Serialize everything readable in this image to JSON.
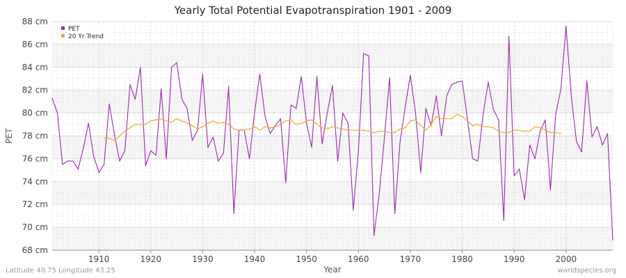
{
  "chart_data": {
    "type": "line",
    "title": "Yearly Total Potential Evapotranspiration 1901 - 2009",
    "xlabel": "Year",
    "ylabel": "PET",
    "xlim": [
      1901,
      2009
    ],
    "ylim": [
      68,
      88
    ],
    "y_unit": "cm",
    "x_ticks": [
      1910,
      1920,
      1930,
      1940,
      1950,
      1960,
      1970,
      1980,
      1990,
      2000
    ],
    "y_ticks": [
      68,
      70,
      72,
      74,
      76,
      78,
      80,
      82,
      84,
      86,
      88
    ],
    "y_tick_labels": [
      "68 cm",
      "70 cm",
      "72 cm",
      "74 cm",
      "76 cm",
      "78 cm",
      "80 cm",
      "82 cm",
      "84 cm",
      "86 cm",
      "88 cm"
    ],
    "grid": true,
    "legend_position": "top-left",
    "series": [
      {
        "name": "PET",
        "color": "#9c27b0",
        "x": [
          1901,
          1902,
          1903,
          1904,
          1905,
          1906,
          1907,
          1908,
          1909,
          1910,
          1911,
          1912,
          1913,
          1914,
          1915,
          1916,
          1917,
          1918,
          1919,
          1920,
          1921,
          1922,
          1923,
          1924,
          1925,
          1926,
          1927,
          1928,
          1929,
          1930,
          1931,
          1932,
          1933,
          1934,
          1935,
          1936,
          1937,
          1938,
          1939,
          1940,
          1941,
          1942,
          1943,
          1944,
          1945,
          1946,
          1947,
          1948,
          1949,
          1950,
          1951,
          1952,
          1953,
          1954,
          1955,
          1956,
          1957,
          1958,
          1959,
          1960,
          1961,
          1962,
          1963,
          1964,
          1965,
          1966,
          1967,
          1968,
          1969,
          1970,
          1971,
          1972,
          1973,
          1974,
          1975,
          1976,
          1977,
          1978,
          1979,
          1980,
          1981,
          1982,
          1983,
          1984,
          1985,
          1986,
          1987,
          1988,
          1989,
          1990,
          1991,
          1992,
          1993,
          1994,
          1995,
          1996,
          1997,
          1998,
          1999,
          2000,
          2001,
          2002,
          2003,
          2004,
          2005,
          2006,
          2007,
          2008,
          2009
        ],
        "y": [
          81.3,
          80.0,
          75.5,
          75.8,
          75.8,
          75.1,
          76.9,
          79.1,
          76.2,
          74.8,
          75.5,
          80.8,
          78.1,
          75.8,
          76.7,
          82.5,
          81.2,
          84.0,
          75.4,
          76.7,
          76.3,
          82.1,
          76.0,
          84.0,
          84.4,
          81.2,
          80.4,
          77.6,
          78.5,
          83.4,
          77.0,
          77.9,
          75.8,
          76.5,
          82.3,
          71.2,
          78.5,
          78.5,
          76.0,
          80.1,
          83.4,
          79.7,
          78.2,
          78.9,
          79.5,
          73.9,
          80.7,
          80.4,
          83.2,
          79.1,
          77.0,
          83.2,
          77.3,
          80.0,
          82.4,
          75.8,
          80.0,
          79.1,
          71.5,
          76.7,
          85.2,
          85.0,
          69.3,
          72.9,
          77.8,
          83.1,
          71.2,
          77.4,
          80.5,
          83.3,
          80.0,
          74.8,
          80.4,
          78.9,
          81.5,
          78.0,
          81.5,
          82.5,
          82.7,
          82.8,
          79.5,
          76.0,
          75.8,
          79.8,
          82.7,
          80.3,
          79.4,
          70.6,
          86.7,
          74.5,
          75.1,
          72.4,
          77.2,
          76.0,
          78.4,
          79.4,
          73.3,
          79.9,
          82.1,
          87.6,
          81.5,
          77.5,
          76.6,
          82.8,
          77.9,
          78.8,
          77.2,
          78.2,
          68.9
        ]
      },
      {
        "name": "20 Yr Trend",
        "color": "#f5a623",
        "x": [
          1911,
          1912,
          1913,
          1914,
          1915,
          1916,
          1917,
          1918,
          1919,
          1920,
          1921,
          1922,
          1923,
          1924,
          1925,
          1926,
          1927,
          1928,
          1929,
          1930,
          1931,
          1932,
          1933,
          1934,
          1935,
          1936,
          1937,
          1938,
          1939,
          1940,
          1941,
          1942,
          1943,
          1944,
          1945,
          1946,
          1947,
          1948,
          1949,
          1950,
          1951,
          1952,
          1953,
          1954,
          1955,
          1956,
          1957,
          1958,
          1959,
          1960,
          1961,
          1962,
          1963,
          1964,
          1965,
          1966,
          1967,
          1968,
          1969,
          1970,
          1971,
          1972,
          1973,
          1974,
          1975,
          1976,
          1977,
          1978,
          1979,
          1980,
          1981,
          1982,
          1983,
          1984,
          1985,
          1986,
          1987,
          1988,
          1989,
          1990,
          1991,
          1992,
          1993,
          1994,
          1995,
          1996,
          1997,
          1998,
          1999
        ],
        "y": [
          77.8,
          77.8,
          77.6,
          78.0,
          78.4,
          78.7,
          79.0,
          79.0,
          79.0,
          79.3,
          79.4,
          79.5,
          79.3,
          79.2,
          79.5,
          79.3,
          79.1,
          78.9,
          78.6,
          78.8,
          79.1,
          79.3,
          79.1,
          79.2,
          79.0,
          78.6,
          78.5,
          78.5,
          78.6,
          78.8,
          78.5,
          78.8,
          78.7,
          78.8,
          79.0,
          79.3,
          79.4,
          79.0,
          79.1,
          79.3,
          79.4,
          79.0,
          78.7,
          78.6,
          78.8,
          78.7,
          78.6,
          78.5,
          78.5,
          78.5,
          78.5,
          78.4,
          78.3,
          78.4,
          78.4,
          78.3,
          78.3,
          78.6,
          78.7,
          79.3,
          79.4,
          78.9,
          78.5,
          79.0,
          79.7,
          79.5,
          79.5,
          79.5,
          79.9,
          79.7,
          79.3,
          78.9,
          79.0,
          78.8,
          78.8,
          78.7,
          78.4,
          78.3,
          78.3,
          78.5,
          78.5,
          78.4,
          78.4,
          78.8,
          78.7,
          78.5,
          78.3,
          78.3,
          78.2
        ]
      }
    ]
  },
  "footer": {
    "coordinates": "Latitude 40.75 Longitude 43.25",
    "source": "worldspecies.org"
  }
}
